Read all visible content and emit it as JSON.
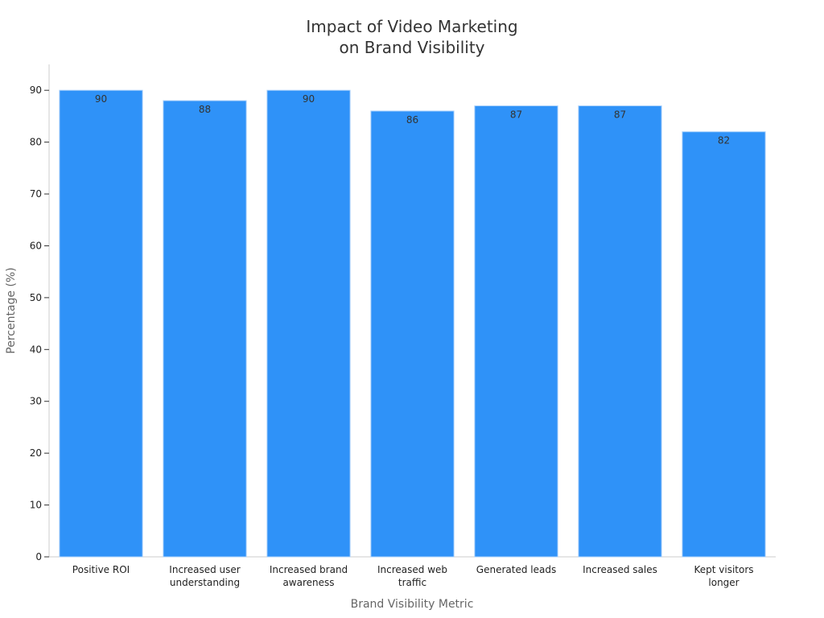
{
  "chart_data": {
    "type": "bar",
    "title_lines": [
      "Impact of Video Marketing",
      "on Brand Visibility"
    ],
    "xlabel": "Brand Visibility Metric",
    "ylabel": "Percentage (%)",
    "categories": [
      [
        "Positive ROI"
      ],
      [
        "Increased user",
        "understanding"
      ],
      [
        "Increased brand",
        "awareness"
      ],
      [
        "Increased web",
        "traffic"
      ],
      [
        "Generated leads"
      ],
      [
        "Increased sales"
      ],
      [
        "Kept visitors",
        "longer"
      ]
    ],
    "values": [
      90,
      88,
      90,
      86,
      87,
      87,
      82
    ],
    "ylim": [
      0,
      95
    ],
    "yticks": [
      0,
      10,
      20,
      30,
      40,
      50,
      60,
      70,
      80,
      90
    ],
    "grid": false,
    "bar_color": "#2f92f8"
  }
}
